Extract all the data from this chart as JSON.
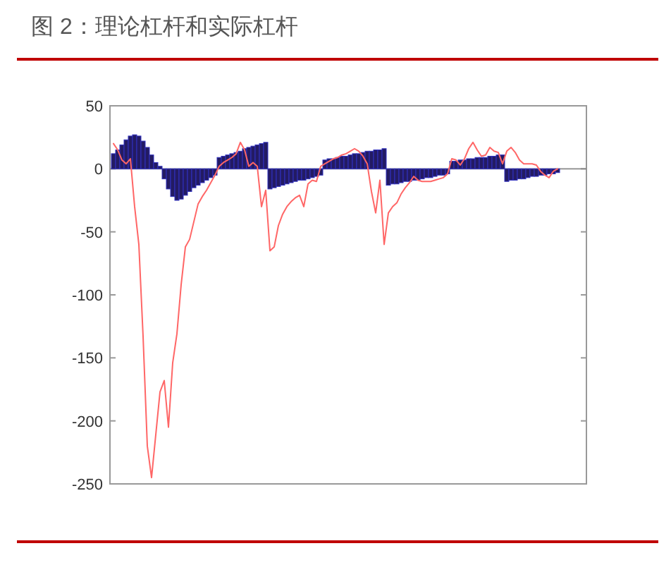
{
  "chart_data": {
    "type": "bar",
    "title": "图 2：理论杠杆和实际杠杆",
    "categories": [
      null,
      null,
      null,
      null,
      null,
      null,
      null,
      null,
      null,
      null,
      null,
      null,
      null,
      null,
      null,
      null,
      null,
      null,
      null,
      null,
      null,
      null,
      null,
      null,
      null,
      null,
      null,
      null,
      null,
      null,
      null,
      null,
      null,
      null,
      null,
      null,
      null,
      null,
      null,
      null,
      null,
      null,
      null,
      null,
      null,
      null,
      null,
      null,
      null,
      null,
      null,
      null,
      null,
      null,
      null,
      null,
      null,
      null,
      null,
      null,
      null,
      null,
      null,
      null,
      null,
      null,
      null,
      null,
      null,
      null,
      null,
      null,
      null,
      null,
      null,
      null,
      null,
      null,
      null,
      null,
      null,
      null,
      null,
      null,
      null,
      null,
      null,
      null,
      null,
      null,
      null,
      null,
      null,
      null,
      null,
      null,
      null,
      null,
      null,
      null,
      null,
      null,
      null,
      null,
      null,
      null
    ],
    "series": [
      {
        "color": "#231b63",
        "values": [
          12,
          15,
          19,
          23,
          26,
          27,
          26,
          22,
          17,
          11,
          5,
          2,
          -8,
          -16,
          -22,
          -25,
          -24,
          -21,
          -18,
          -15,
          -13,
          -11,
          -9,
          -7,
          -5,
          9,
          10,
          11,
          12,
          13,
          14,
          16,
          17,
          18,
          19,
          20,
          21,
          -16,
          -15,
          -14,
          -13,
          -12,
          -11,
          -10,
          -9,
          -9,
          -8,
          -7,
          -6,
          -5,
          7,
          8,
          8,
          9,
          10,
          10,
          11,
          12,
          12,
          13,
          14,
          14,
          15,
          15,
          16,
          -13,
          -12,
          -12,
          -11,
          -10,
          -10,
          -9,
          -9,
          -8,
          -7,
          -7,
          -6,
          -5,
          -5,
          -4,
          6,
          6,
          7,
          7,
          8,
          8,
          9,
          9,
          9,
          10,
          10,
          11,
          11,
          -10,
          -9,
          -9,
          -8,
          -8,
          -7,
          -6,
          -6,
          -5,
          -5,
          -4,
          -4,
          -3
        ]
      },
      {
        "type": "line",
        "color": "#ff6666",
        "values": [
          20,
          15,
          7,
          4,
          8,
          -30,
          -60,
          -133,
          -220,
          -245,
          -211,
          -177,
          -168,
          -205,
          -154,
          -131,
          -92,
          -62,
          -56,
          -42,
          -28,
          -22,
          -17,
          -11,
          -5,
          2,
          5,
          7,
          9,
          12,
          21,
          15,
          2,
          5,
          2,
          -30,
          -17,
          -65,
          -62,
          -45,
          -36,
          -30,
          -26,
          -23,
          -21,
          -30,
          -12,
          -9,
          -10,
          2,
          4,
          6,
          8,
          9,
          11,
          12,
          14,
          16,
          14,
          10,
          4,
          -18,
          -35,
          -9,
          -60,
          -35,
          -30,
          -27,
          -20,
          -15,
          -11,
          -6,
          -9,
          -10,
          -10,
          -10,
          -9,
          -8,
          -7,
          -4,
          8,
          7,
          3,
          8,
          16,
          21,
          15,
          10,
          11,
          17,
          14,
          13,
          4,
          14,
          17,
          13,
          7,
          4,
          4,
          4,
          3,
          -2,
          -5,
          -7,
          -2,
          0
        ]
      }
    ],
    "ylim": [
      -250,
      50
    ],
    "yticks": [
      -250,
      -200,
      -150,
      -100,
      -50,
      0,
      50
    ],
    "tick_labels": "y"
  }
}
